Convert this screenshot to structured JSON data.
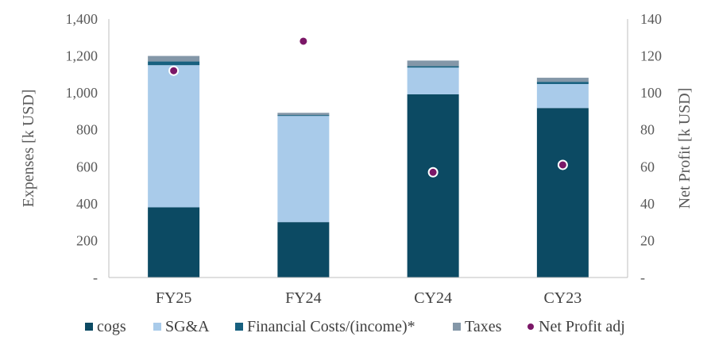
{
  "chart_data": {
    "type": "bar",
    "stacked": true,
    "categories": [
      "FY25",
      "FY24",
      "CY24",
      "CY23"
    ],
    "series": [
      {
        "name": "cogs",
        "color": "#0c4a63",
        "values": [
          380,
          300,
          992,
          918
        ]
      },
      {
        "name": "SG&A",
        "color": "#a9cbea",
        "values": [
          770,
          575,
          145,
          130
        ]
      },
      {
        "name": "Financial Costs/(income)*",
        "color": "#17607f",
        "values": [
          20,
          5,
          8,
          12
        ]
      },
      {
        "name": "Taxes",
        "color": "#8497a8",
        "values": [
          30,
          12,
          30,
          22
        ]
      }
    ],
    "secondary_series": {
      "name": "Net Profit adj",
      "type": "scatter",
      "color": "#7b1767",
      "values": [
        112,
        128,
        57,
        61
      ]
    },
    "ylabel": "Expenses [k USD]",
    "y2label": "Net Profit  [k USD]",
    "ylim": [
      0,
      1400
    ],
    "y2lim": [
      0,
      140
    ],
    "yticks": [
      "-",
      "200",
      "400",
      "600",
      "800",
      "1,000",
      "1,200",
      "1,400"
    ],
    "y2ticks": [
      "-",
      "20",
      "40",
      "60",
      "80",
      "100",
      "120",
      "140"
    ],
    "legend_position": "bottom",
    "grid": false
  }
}
